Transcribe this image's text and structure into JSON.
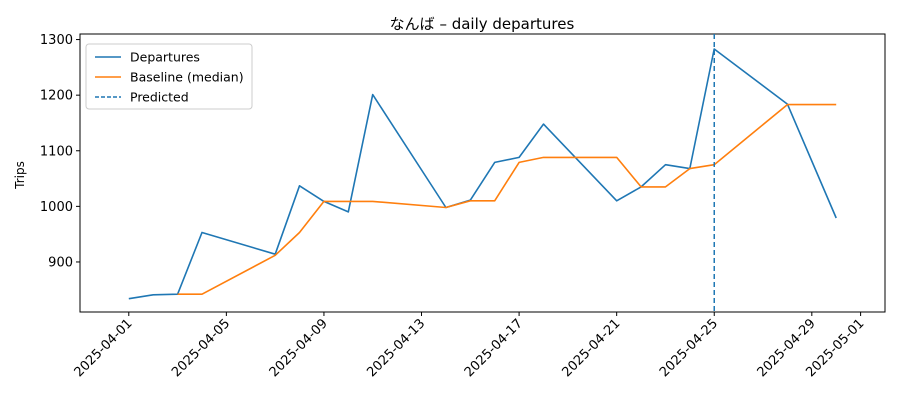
{
  "chart_data": {
    "type": "line",
    "title": "なんば – daily departures",
    "xlabel": "",
    "ylabel": "Trips",
    "xlim": [
      "2025-03-30",
      "2025-05-02"
    ],
    "ylim": [
      810,
      1310
    ],
    "x_ticks": [
      "2025-04-01",
      "2025-04-05",
      "2025-04-09",
      "2025-04-13",
      "2025-04-17",
      "2025-04-21",
      "2025-04-25",
      "2025-04-29",
      "2025-05-01"
    ],
    "y_ticks": [
      900,
      1000,
      1100,
      1200,
      1300
    ],
    "grid": false,
    "legend_position": "top-left",
    "series": [
      {
        "name": "Departures",
        "color": "#1f77b4",
        "points": [
          [
            "2025-04-01",
            834
          ],
          [
            "2025-04-02",
            841
          ],
          [
            "2025-04-03",
            842
          ],
          [
            "2025-04-04",
            953
          ],
          [
            "2025-04-07",
            914
          ],
          [
            "2025-04-08",
            1037
          ],
          [
            "2025-04-09",
            1009
          ],
          [
            "2025-04-10",
            990
          ],
          [
            "2025-04-11",
            1201
          ],
          [
            "2025-04-14",
            998
          ],
          [
            "2025-04-15",
            1011
          ],
          [
            "2025-04-16",
            1079
          ],
          [
            "2025-04-17",
            1088
          ],
          [
            "2025-04-18",
            1148
          ],
          [
            "2025-04-21",
            1010
          ],
          [
            "2025-04-22",
            1035
          ],
          [
            "2025-04-23",
            1075
          ],
          [
            "2025-04-24",
            1068
          ],
          [
            "2025-04-25",
            1283
          ],
          [
            "2025-04-28",
            1184
          ],
          [
            "2025-04-30",
            979
          ]
        ]
      },
      {
        "name": "Baseline (median)",
        "color": "#ff7f0e",
        "points": [
          [
            "2025-04-03",
            842
          ],
          [
            "2025-04-04",
            842
          ],
          [
            "2025-04-07",
            912
          ],
          [
            "2025-04-08",
            953
          ],
          [
            "2025-04-09",
            1009
          ],
          [
            "2025-04-10",
            1009
          ],
          [
            "2025-04-11",
            1009
          ],
          [
            "2025-04-14",
            998
          ],
          [
            "2025-04-15",
            1010
          ],
          [
            "2025-04-16",
            1010
          ],
          [
            "2025-04-17",
            1079
          ],
          [
            "2025-04-18",
            1088
          ],
          [
            "2025-04-21",
            1088
          ],
          [
            "2025-04-22",
            1035
          ],
          [
            "2025-04-23",
            1035
          ],
          [
            "2025-04-24",
            1068
          ],
          [
            "2025-04-25",
            1075
          ],
          [
            "2025-04-28",
            1183
          ],
          [
            "2025-04-29",
            1183
          ],
          [
            "2025-04-30",
            1183
          ]
        ]
      }
    ],
    "vline": {
      "name": "Predicted",
      "x": "2025-04-25",
      "color": "#1f77b4",
      "style": "dashed"
    }
  }
}
